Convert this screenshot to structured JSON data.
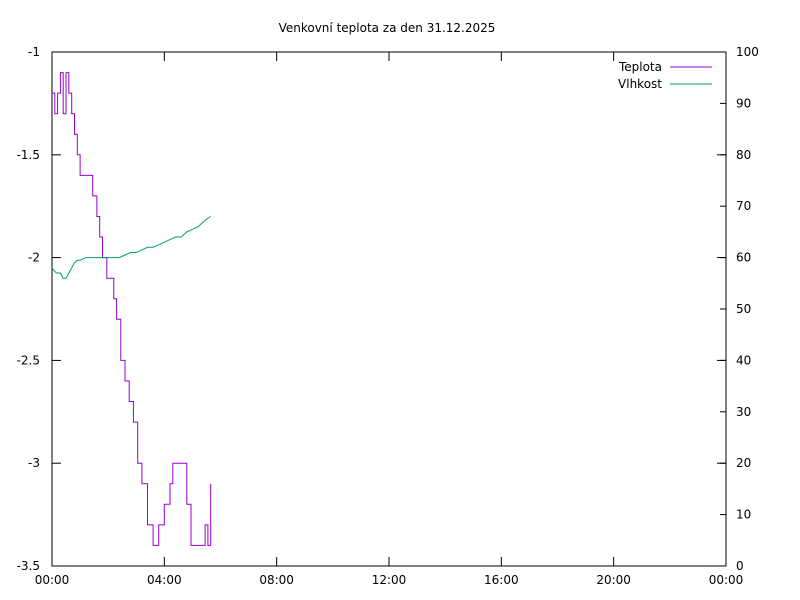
{
  "chart_data": {
    "type": "line",
    "title": "Venkovní teplota za den 31.12.2025",
    "xlabel": "",
    "ylabel": "",
    "y2label": "",
    "x_ticks": [
      "00:00",
      "04:00",
      "08:00",
      "12:00",
      "16:00",
      "20:00",
      "00:00"
    ],
    "xlim": [
      0,
      24
    ],
    "ylim": [
      -3.5,
      -1
    ],
    "y_ticks": [
      "-1",
      "-1.5",
      "-2",
      "-2.5",
      "-3",
      "-3.5"
    ],
    "y2lim": [
      0,
      100
    ],
    "y2_ticks": [
      "100",
      "90",
      "80",
      "70",
      "60",
      "50",
      "40",
      "30",
      "20",
      "10",
      "0"
    ],
    "grid": false,
    "legend": "top-right",
    "series": [
      {
        "name": "Teplota",
        "axis": "left",
        "color": "#9400d3",
        "step": true,
        "x": [
          0.0,
          0.1,
          0.2,
          0.3,
          0.4,
          0.5,
          0.6,
          0.7,
          0.8,
          0.9,
          1.0,
          1.1,
          1.3,
          1.45,
          1.6,
          1.7,
          1.8,
          1.95,
          2.1,
          2.2,
          2.3,
          2.45,
          2.6,
          2.75,
          2.9,
          3.05,
          3.2,
          3.4,
          3.6,
          3.8,
          4.0,
          4.2,
          4.3,
          4.6,
          4.8,
          4.95,
          5.1,
          5.3,
          5.45,
          5.55,
          5.65
        ],
        "values": [
          -1.2,
          -1.3,
          -1.2,
          -1.1,
          -1.3,
          -1.1,
          -1.2,
          -1.3,
          -1.4,
          -1.5,
          -1.6,
          -1.6,
          -1.6,
          -1.7,
          -1.8,
          -1.9,
          -2.0,
          -2.1,
          -2.1,
          -2.2,
          -2.3,
          -2.5,
          -2.6,
          -2.7,
          -2.8,
          -3.0,
          -3.1,
          -3.3,
          -3.4,
          -3.3,
          -3.2,
          -3.1,
          -3.0,
          -3.0,
          -3.2,
          -3.4,
          -3.4,
          -3.4,
          -3.3,
          -3.4,
          -3.1
        ]
      },
      {
        "name": "Vlhkost",
        "axis": "right",
        "color": "#009e73",
        "step": false,
        "x": [
          0.0,
          0.15,
          0.3,
          0.4,
          0.5,
          0.6,
          0.7,
          0.8,
          0.9,
          1.0,
          1.2,
          1.4,
          1.6,
          1.8,
          2.0,
          2.2,
          2.4,
          2.6,
          2.8,
          3.0,
          3.2,
          3.4,
          3.6,
          3.8,
          4.0,
          4.2,
          4.4,
          4.6,
          4.8,
          5.0,
          5.2,
          5.4,
          5.5,
          5.65
        ],
        "values": [
          58,
          57,
          57,
          56,
          56,
          57,
          58,
          59,
          59.5,
          59.5,
          60,
          60,
          60,
          60,
          60,
          60,
          60,
          60.5,
          61,
          61,
          61.5,
          62,
          62,
          62.5,
          63,
          63.5,
          64,
          64,
          65,
          65.5,
          66,
          67,
          67.5,
          68
        ]
      }
    ]
  }
}
